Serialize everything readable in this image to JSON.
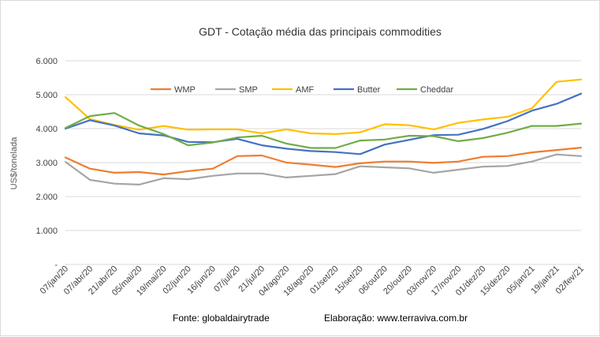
{
  "chart_data": {
    "type": "line",
    "title": "GDT - Cotação média das principais commodities",
    "ylabel": "US$/tonelada",
    "xlabel": "",
    "ylim": [
      0,
      6000
    ],
    "yticks": [
      0,
      1000,
      2000,
      3000,
      4000,
      5000,
      6000
    ],
    "ytick_labels": [
      "-",
      "1.000",
      "2.000",
      "3.000",
      "4.000",
      "5.000",
      "6.000"
    ],
    "grid": "horizontal",
    "legend_position": "top",
    "categories": [
      "07/jan/20",
      "07/abr/20",
      "21/abr/20",
      "05/mai/20",
      "19/mai/20",
      "02/jun/20",
      "16/jun/20",
      "07/jul/20",
      "21/jul/20",
      "04/ago/20",
      "18/ago/20",
      "01/set/20",
      "15/set/20",
      "06/out/20",
      "20/out/20",
      "03/nov/20",
      "17/nov/20",
      "01/dez/20",
      "15/dez/20",
      "05/jan/21",
      "19/jan/21",
      "02/fev/21"
    ],
    "series": [
      {
        "name": "WMP",
        "color": "#ED7D31",
        "values": [
          3150,
          2820,
          2700,
          2720,
          2650,
          2750,
          2820,
          3190,
          3210,
          3000,
          2940,
          2870,
          2980,
          3030,
          3030,
          2990,
          3030,
          3170,
          3190,
          3300,
          3370,
          3440
        ]
      },
      {
        "name": "SMP",
        "color": "#A5A5A5",
        "values": [
          3020,
          2490,
          2380,
          2350,
          2540,
          2510,
          2610,
          2680,
          2680,
          2560,
          2610,
          2660,
          2890,
          2860,
          2830,
          2700,
          2790,
          2880,
          2900,
          3030,
          3240,
          3190
        ]
      },
      {
        "name": "AMF",
        "color": "#FFC000",
        "values": [
          4930,
          4280,
          4110,
          3970,
          4080,
          3970,
          3980,
          3980,
          3860,
          3980,
          3860,
          3840,
          3890,
          4130,
          4100,
          3980,
          4170,
          4270,
          4350,
          4600,
          5380,
          5450
        ]
      },
      {
        "name": "Butter",
        "color": "#4472C4",
        "values": [
          4000,
          4250,
          4090,
          3860,
          3800,
          3610,
          3600,
          3700,
          3510,
          3410,
          3340,
          3310,
          3250,
          3530,
          3670,
          3810,
          3820,
          3990,
          4220,
          4530,
          4730,
          5030
        ]
      },
      {
        "name": "Cheddar",
        "color": "#70AD47",
        "values": [
          4020,
          4370,
          4460,
          4090,
          3840,
          3510,
          3590,
          3740,
          3790,
          3560,
          3430,
          3430,
          3650,
          3680,
          3790,
          3780,
          3630,
          3720,
          3880,
          4080,
          4080,
          4150
        ]
      }
    ]
  },
  "footer": {
    "source": "Fonte:  globaldairytrade",
    "credit": "Elaboração: www.terraviva.com.br"
  }
}
